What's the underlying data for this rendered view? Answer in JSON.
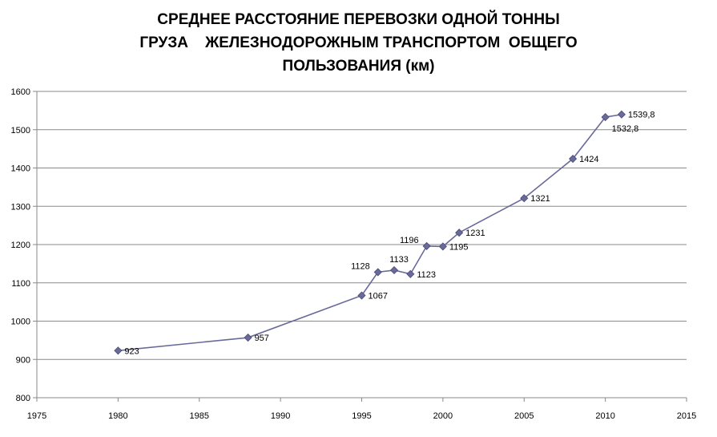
{
  "chart_data": {
    "type": "line",
    "title_lines": [
      "СРЕДНЕЕ РАССТОЯНИЕ ПЕРЕВОЗКИ ОДНОЙ ТОННЫ",
      "ГРУЗА    ЖЕЛЕЗНОДОРОЖНЫМ ТРАНСПОРТОМ  ОБЩЕГО",
      "ПОЛЬЗОВАНИЯ (км)"
    ],
    "xlim": [
      1975,
      2015
    ],
    "ylim": [
      800,
      1600
    ],
    "xticks": [
      1975,
      1980,
      1985,
      1990,
      1995,
      2000,
      2005,
      2010,
      2015
    ],
    "yticks": [
      800,
      900,
      1000,
      1100,
      1200,
      1300,
      1400,
      1500,
      1600
    ],
    "grid": true,
    "series_color": "#6a6a9a",
    "marker_color": "#6a6a9a",
    "points": [
      {
        "x": 1980,
        "y": 923,
        "label": "923",
        "pos": "right"
      },
      {
        "x": 1988,
        "y": 957,
        "label": "957",
        "pos": "right"
      },
      {
        "x": 1995,
        "y": 1067,
        "label": "1067",
        "pos": "right"
      },
      {
        "x": 1996,
        "y": 1128,
        "label": "1128",
        "pos": "left"
      },
      {
        "x": 1997,
        "y": 1133,
        "label": "1133",
        "pos": "above"
      },
      {
        "x": 1998,
        "y": 1123,
        "label": "1123",
        "pos": "right"
      },
      {
        "x": 1999,
        "y": 1196,
        "label": "1196",
        "pos": "left"
      },
      {
        "x": 2000,
        "y": 1195,
        "label": "1195",
        "pos": "right"
      },
      {
        "x": 2001,
        "y": 1231,
        "label": "1231",
        "pos": "right"
      },
      {
        "x": 2005,
        "y": 1321,
        "label": "1321",
        "pos": "right"
      },
      {
        "x": 2008,
        "y": 1424,
        "label": "1424",
        "pos": "right"
      },
      {
        "x": 2010,
        "y": 1532.8,
        "label": "1532,8",
        "pos": "below"
      },
      {
        "x": 2011,
        "y": 1539.8,
        "label": "1539,8",
        "pos": "right"
      }
    ]
  }
}
